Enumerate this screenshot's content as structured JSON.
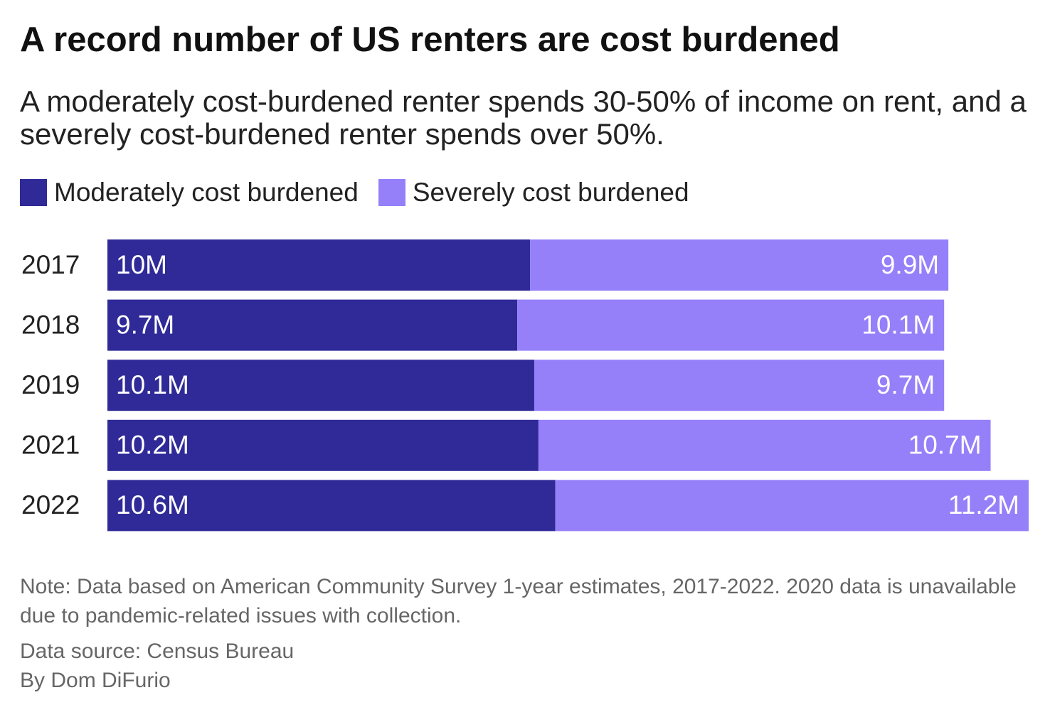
{
  "chart_data": {
    "type": "stacked-bar-horizontal",
    "title": "A record number of US renters are cost burdened",
    "subtitle": "A moderately cost-burdened renter spends 30-50% of income on rent, and a severely cost-burdened renter spends over 50%.",
    "categories": [
      "2017",
      "2018",
      "2019",
      "2021",
      "2022"
    ],
    "series": [
      {
        "name": "Moderately cost burdened",
        "color": "#2f2a98",
        "values": [
          10,
          9.7,
          10.1,
          10.2,
          10.6
        ],
        "value_labels": [
          "10M",
          "9.7M",
          "10.1M",
          "10.2M",
          "10.6M"
        ]
      },
      {
        "name": "Severely cost burdened",
        "color": "#9580fa",
        "values": [
          9.9,
          10.1,
          9.7,
          10.7,
          11.2
        ],
        "value_labels": [
          "9.9M",
          "10.1M",
          "9.7M",
          "10.7M",
          "11.2M"
        ]
      }
    ],
    "note": "Note: Data based on American Community Survey 1-year estimates, 2017-2022. 2020 data is unavailable due to pandemic-related issues with collection.",
    "source": "Data source: Census Bureau",
    "byline": "By Dom DiFurio"
  }
}
